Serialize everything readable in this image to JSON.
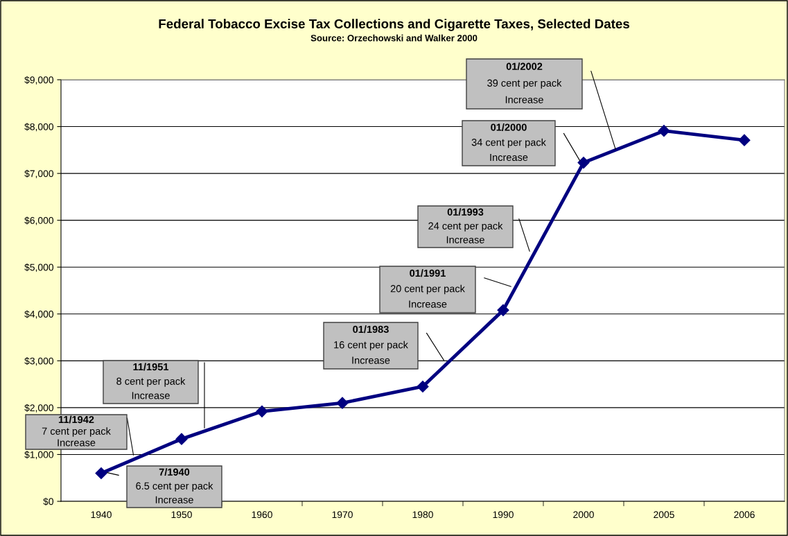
{
  "chart_data": {
    "type": "line",
    "title": "Federal Tobacco Excise Tax Collections and Cigarette Taxes, Selected Dates",
    "subtitle": "Source: Orzechowski and Walker 2000",
    "categories": [
      "1940",
      "1950",
      "1960",
      "1970",
      "1980",
      "1990",
      "2000",
      "2005",
      "2006"
    ],
    "series": [
      {
        "color": "#000080",
        "values": [
          600,
          1330,
          1920,
          2100,
          2450,
          4080,
          7230,
          7910,
          7710
        ]
      }
    ],
    "ylim": [
      0,
      9000
    ],
    "yticks": [
      {
        "value": 0,
        "label": "$0"
      },
      {
        "value": 1000,
        "label": "$1,000"
      },
      {
        "value": 2000,
        "label": "$2,000"
      },
      {
        "value": 3000,
        "label": "$3,000"
      },
      {
        "value": 4000,
        "label": "$4,000"
      },
      {
        "value": 5000,
        "label": "$5,000"
      },
      {
        "value": 6000,
        "label": "$6,000"
      },
      {
        "value": 7000,
        "label": "$7,000"
      },
      {
        "value": 8000,
        "label": "$8,000"
      },
      {
        "value": 9000,
        "label": "$9,000"
      }
    ],
    "grid": "y",
    "marker": "diamond",
    "line_style": "solid",
    "legend": false,
    "annotations": [
      "11/1942\n7 cent per pack\nIncrease",
      "7/1940\n6.5 cent per pack\nIncrease",
      "11/1951\n8 cent per pack\nIncrease",
      "01/1983\n16 cent per pack\nIncrease",
      "01/1991\n20 cent per pack\nIncrease",
      "01/1993\n24 cent per pack\nIncrease",
      "01/2000\n34 cent per pack\nIncrease",
      "01/2002\n39 cent per pack\nIncrease"
    ]
  }
}
